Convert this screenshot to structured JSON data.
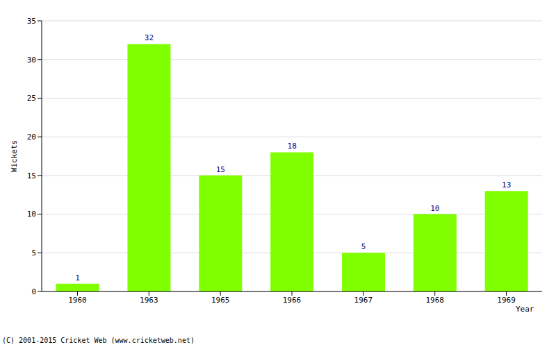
{
  "chart_data": {
    "type": "bar",
    "categories": [
      "1960",
      "1963",
      "1965",
      "1966",
      "1967",
      "1968",
      "1969"
    ],
    "values": [
      1,
      32,
      15,
      18,
      5,
      10,
      13
    ],
    "color": "#80ff00",
    "xlabel": "Year",
    "ylabel": "Wickets",
    "ylim": [
      0,
      35
    ],
    "yticks": [
      0,
      5,
      10,
      15,
      20,
      25,
      30,
      35
    ],
    "grid": true,
    "data_labels": true,
    "annotations": [
      "(C) 2001-2015 Cricket Web (www.cricketweb.net)"
    ]
  }
}
